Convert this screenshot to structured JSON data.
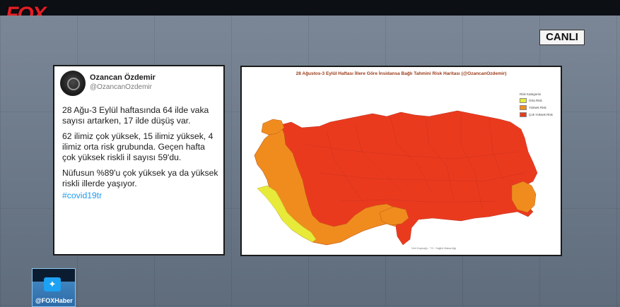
{
  "broadcast": {
    "channel_logo": "FOX",
    "live_label": "CANLI",
    "twitter_handle": "@FOXHaber",
    "twitter_icon": "twitter-bird-icon"
  },
  "tweet": {
    "author_name": "Ozancan Özdemir",
    "author_handle": "@OzancanOzdemir",
    "paragraphs": [
      "28 Ağu-3 Eylül haftasında 64 ilde vaka sayısı artarken, 17 ilde düşüş var.",
      "62 ilimiz çok yüksek, 15 ilimiz yüksek, 4 ilimiz orta risk grubunda. Geçen hafta çok yüksek riskli il sayısı 59'du.",
      "Nüfusun %89'u çok yüksek ya da yüksek riskli illerde yaşıyor."
    ],
    "hashtag": "#covid19tr"
  },
  "map": {
    "title": "28 Ağustos-3 Eylül Haftası İllere Göre İnsidansa Bağlı Tahmini Risk Haritası (@OzancanOzdemir)",
    "legend_title": "Risk Kategorisi",
    "legend": [
      {
        "label": "Orta Risk",
        "color": "#e8ea3a"
      },
      {
        "label": "Yüksek Risk",
        "color": "#f08c1e"
      },
      {
        "label": "Çok Yüksek Risk",
        "color": "#ea3a1e"
      }
    ],
    "footer": "Veri Kaynağı : T.C. Sağlık Bakanlığı"
  }
}
